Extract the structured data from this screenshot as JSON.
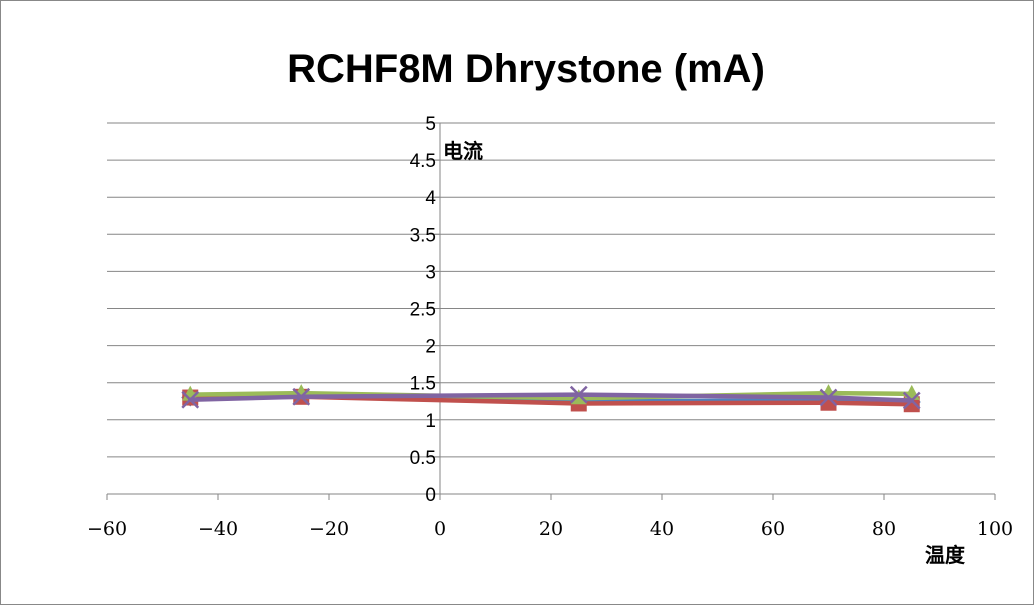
{
  "chart_data": {
    "type": "scatter",
    "title": "RCHF8M Dhrystone (mA)",
    "xlabel": "温度",
    "ylabel": "电流",
    "xlim": [
      -60,
      100
    ],
    "ylim": [
      0,
      5
    ],
    "x_ticks": [
      "−60",
      "−40",
      "−20",
      "0",
      "20",
      "40",
      "60",
      "80",
      "100"
    ],
    "y_ticks": [
      "0",
      "0.5",
      "1",
      "1.5",
      "2",
      "2.5",
      "3",
      "3.5",
      "4",
      "4.5",
      "5"
    ],
    "grid": true,
    "legend": "none",
    "series": [
      {
        "marker": "diamond",
        "color": "#4F81BD",
        "x": [
          -45,
          -25,
          25,
          70,
          85
        ],
        "y": [
          1.3,
          1.33,
          1.25,
          1.26,
          1.24
        ]
      },
      {
        "marker": "square",
        "color": "#C0504D",
        "x": [
          -45,
          -25,
          25,
          70,
          85
        ],
        "y": [
          1.3,
          1.31,
          1.22,
          1.23,
          1.21
        ]
      },
      {
        "marker": "triangle",
        "color": "#9BBB59",
        "x": [
          -45,
          -25,
          25,
          70,
          85
        ],
        "y": [
          1.34,
          1.36,
          1.29,
          1.36,
          1.35
        ]
      },
      {
        "marker": "x",
        "color": "#8064A2",
        "x": [
          -45,
          -25,
          25,
          70,
          85
        ],
        "y": [
          1.27,
          1.31,
          1.34,
          1.3,
          1.26
        ]
      }
    ]
  }
}
